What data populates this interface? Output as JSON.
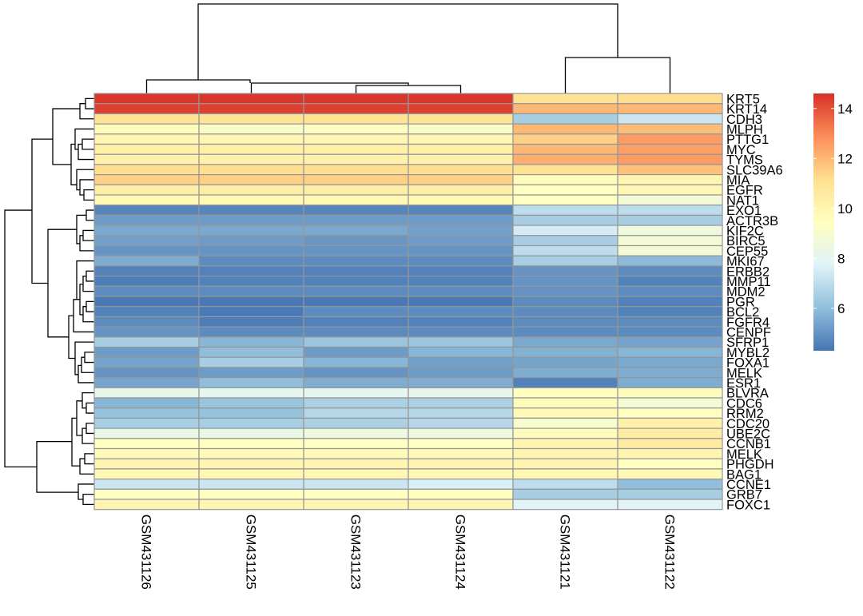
{
  "chart_data": {
    "type": "heatmap",
    "title": "",
    "columns": [
      "GSM431126",
      "GSM431125",
      "GSM431123",
      "GSM431124",
      "GSM431121",
      "GSM431122"
    ],
    "rows": [
      {
        "gene": "KRT5",
        "values": [
          14.5,
          14.5,
          14.5,
          14.5,
          11.0,
          11.2
        ]
      },
      {
        "gene": "KRT14",
        "values": [
          14.3,
          14.3,
          14.3,
          14.3,
          12.0,
          12.0
        ]
      },
      {
        "gene": "CDH3",
        "values": [
          11.0,
          11.0,
          11.0,
          11.0,
          6.5,
          7.3
        ]
      },
      {
        "gene": "MLPH",
        "values": [
          9.6,
          9.2,
          9.4,
          9.2,
          12.0,
          11.9
        ]
      },
      {
        "gene": "PTTG1",
        "values": [
          10.0,
          10.0,
          10.0,
          10.0,
          11.5,
          12.6
        ]
      },
      {
        "gene": "MYC",
        "values": [
          10.3,
          10.3,
          10.3,
          10.3,
          12.0,
          12.5
        ]
      },
      {
        "gene": "TYMS",
        "values": [
          10.2,
          10.2,
          10.2,
          10.2,
          12.2,
          12.6
        ]
      },
      {
        "gene": "SLC39A6",
        "values": [
          11.2,
          11.2,
          11.2,
          11.2,
          11.0,
          11.8
        ]
      },
      {
        "gene": "MIA",
        "values": [
          11.5,
          11.5,
          11.5,
          11.5,
          9.6,
          10.0
        ]
      },
      {
        "gene": "EGFR",
        "values": [
          10.4,
          10.4,
          10.4,
          10.4,
          9.4,
          9.9
        ]
      },
      {
        "gene": "NAT1",
        "values": [
          9.8,
          9.8,
          9.8,
          9.8,
          9.4,
          8.8
        ]
      },
      {
        "gene": "EXO1",
        "values": [
          4.7,
          4.7,
          4.7,
          4.7,
          7.0,
          7.0
        ]
      },
      {
        "gene": "ACTR3B",
        "values": [
          5.2,
          5.2,
          5.2,
          5.2,
          6.5,
          6.5
        ]
      },
      {
        "gene": "KIF2C",
        "values": [
          5.5,
          5.5,
          5.5,
          5.3,
          7.5,
          8.5
        ]
      },
      {
        "gene": "BIRC5",
        "values": [
          5.3,
          5.2,
          5.1,
          5.2,
          6.5,
          8.8
        ]
      },
      {
        "gene": "CEP55",
        "values": [
          5.0,
          5.0,
          5.0,
          5.0,
          7.0,
          8.8
        ]
      },
      {
        "gene": "MKI67",
        "values": [
          5.6,
          4.8,
          4.8,
          4.8,
          6.5,
          5.9
        ]
      },
      {
        "gene": "ERBB2",
        "values": [
          4.6,
          4.6,
          4.6,
          4.6,
          5.0,
          4.8
        ]
      },
      {
        "gene": "MMP11",
        "values": [
          4.5,
          4.6,
          4.6,
          4.6,
          5.0,
          4.6
        ]
      },
      {
        "gene": "MDM2",
        "values": [
          4.8,
          4.8,
          4.8,
          4.8,
          5.0,
          4.8
        ]
      },
      {
        "gene": "PGR",
        "values": [
          4.4,
          4.4,
          4.4,
          4.4,
          4.8,
          4.6
        ]
      },
      {
        "gene": "BCL2",
        "values": [
          4.6,
          4.4,
          4.8,
          4.8,
          4.8,
          4.6
        ]
      },
      {
        "gene": "FGFR4",
        "values": [
          4.8,
          4.5,
          4.6,
          4.6,
          4.8,
          4.8
        ]
      },
      {
        "gene": "CENPF",
        "values": [
          5.0,
          4.8,
          4.8,
          4.8,
          4.8,
          4.8
        ]
      },
      {
        "gene": "SFRP1",
        "values": [
          6.5,
          5.8,
          6.2,
          6.2,
          5.5,
          5.4
        ]
      },
      {
        "gene": "MYBL2",
        "values": [
          5.2,
          6.0,
          5.2,
          5.8,
          5.7,
          5.8
        ]
      },
      {
        "gene": "FOXA1",
        "values": [
          5.4,
          6.5,
          5.8,
          5.3,
          5.4,
          5.5
        ]
      },
      {
        "gene": "MELK",
        "values": [
          5.0,
          5.2,
          5.0,
          5.2,
          5.6,
          5.6
        ]
      },
      {
        "gene": "ESR1",
        "values": [
          5.4,
          6.0,
          5.6,
          5.6,
          4.6,
          5.6
        ]
      },
      {
        "gene": "BLVRA",
        "values": [
          8.2,
          8.0,
          8.0,
          8.2,
          9.5,
          9.6
        ]
      },
      {
        "gene": "CDC6",
        "values": [
          5.8,
          6.2,
          6.6,
          6.6,
          9.6,
          8.8
        ]
      },
      {
        "gene": "RRM2",
        "values": [
          6.1,
          6.1,
          6.8,
          6.8,
          9.8,
          9.4
        ]
      },
      {
        "gene": "CDC20",
        "values": [
          6.5,
          6.5,
          6.6,
          6.8,
          9.0,
          10.2
        ]
      },
      {
        "gene": "UBE2C",
        "values": [
          8.3,
          8.3,
          8.5,
          8.5,
          9.6,
          10.5
        ]
      },
      {
        "gene": "CCNB1",
        "values": [
          9.4,
          9.4,
          9.4,
          9.4,
          10.0,
          10.6
        ]
      },
      {
        "gene": "MELK",
        "values": [
          9.7,
          9.7,
          9.7,
          9.7,
          10.0,
          10.0
        ]
      },
      {
        "gene": "PHGDH",
        "values": [
          10.0,
          10.0,
          10.0,
          10.0,
          10.0,
          9.4
        ]
      },
      {
        "gene": "BAG1",
        "values": [
          9.9,
          9.9,
          9.9,
          9.9,
          9.9,
          9.8
        ]
      },
      {
        "gene": "CCNE1",
        "values": [
          7.3,
          7.3,
          7.3,
          7.6,
          7.0,
          6.0
        ]
      },
      {
        "gene": "GRB7",
        "values": [
          9.4,
          9.4,
          9.4,
          9.4,
          6.5,
          6.5
        ]
      },
      {
        "gene": "FOXC1",
        "values": [
          10.0,
          10.0,
          10.0,
          10.0,
          7.8,
          7.8
        ]
      }
    ],
    "legend": {
      "ticks": [
        6,
        8,
        10,
        12,
        14
      ],
      "tick_labels": [
        "6",
        "8",
        "10",
        "12",
        "14"
      ],
      "min": 4.3,
      "max": 14.6,
      "colors": [
        "#4575B4",
        "#91BFDB",
        "#E0F3F8",
        "#FFFFBF",
        "#FEE090",
        "#FC8D59",
        "#D73027"
      ]
    },
    "border_color": "#969696",
    "xlabel": "",
    "ylabel": ""
  }
}
